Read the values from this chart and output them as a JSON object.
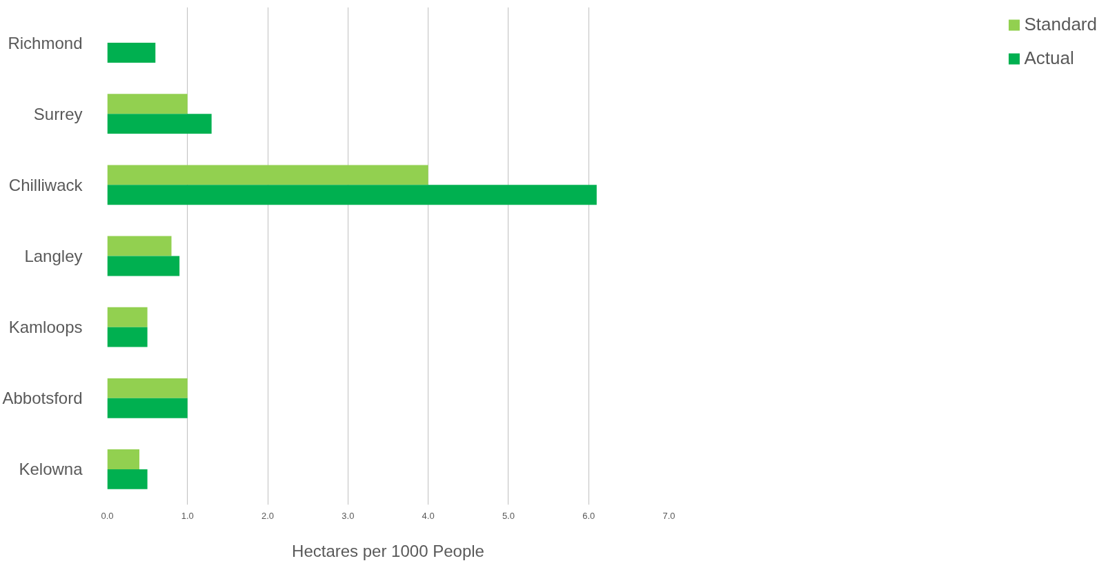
{
  "chart_data": {
    "type": "bar",
    "orientation": "horizontal",
    "xlabel": "Hectares per 1000 People",
    "categories": [
      "Richmond",
      "Surrey",
      "Chilliwack",
      "Langley",
      "Kamloops",
      "Abbotsford",
      "Kelowna"
    ],
    "series": [
      {
        "name": "Standard",
        "color": "#92d050",
        "values": [
          null,
          1.0,
          4.0,
          0.8,
          0.5,
          1.0,
          0.4
        ]
      },
      {
        "name": "Actual",
        "color": "#00b050",
        "values": [
          0.6,
          1.3,
          6.1,
          0.9,
          0.5,
          1.0,
          0.5
        ]
      }
    ],
    "xlim": [
      0,
      7
    ],
    "xticks": [
      {
        "value": 0,
        "label": "0.0"
      },
      {
        "value": 1,
        "label": "1.0"
      },
      {
        "value": 2,
        "label": "2.0"
      },
      {
        "value": 3,
        "label": "3.0"
      },
      {
        "value": 4,
        "label": "4.0"
      },
      {
        "value": 5,
        "label": "5.0"
      },
      {
        "value": 6,
        "label": "6.0"
      },
      {
        "value": 7,
        "label": "7.0"
      }
    ],
    "grid": "x",
    "legend": "right"
  }
}
